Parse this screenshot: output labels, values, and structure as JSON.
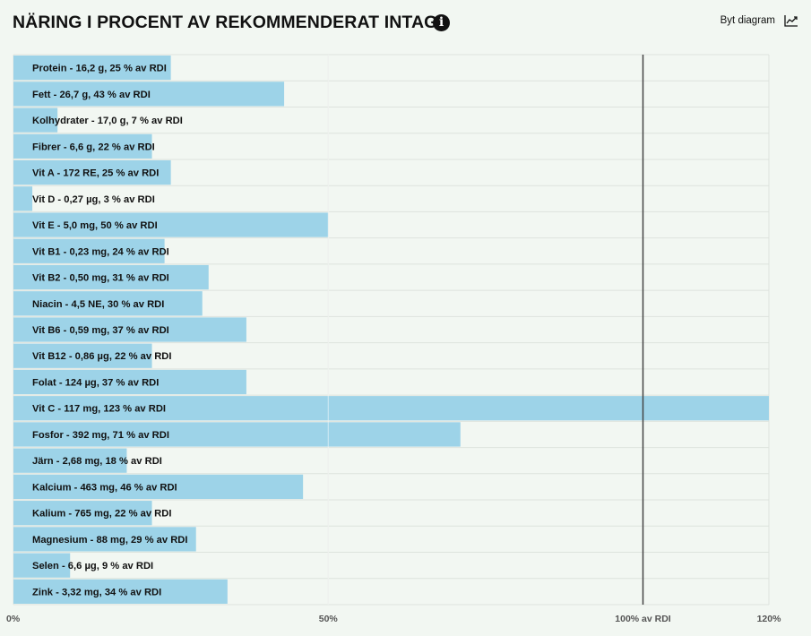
{
  "header": {
    "title": "NÄRING I PROCENT AV REKOMMENDERAT INTAG",
    "info_icon": "info-icon",
    "info_glyph": "i",
    "switch_label": "Byt diagram",
    "switch_icon": "line-chart-icon"
  },
  "colors": {
    "bar": "#9dd3e8",
    "background": "#f2f7f2",
    "grid": "#dde3dd",
    "reference_line": "#444444"
  },
  "chart_data": {
    "type": "bar",
    "orientation": "horizontal",
    "categories": [
      "Protein - 16,2 g, 25 % av RDI",
      "Fett - 26,7 g, 43 % av RDI",
      "Kolhydrater - 17,0 g, 7 % av RDI",
      "Fibrer - 6,6 g, 22 % av RDI",
      "Vit A - 172 RE, 25 % av RDI",
      "Vit D - 0,27 µg, 3 % av RDI",
      "Vit E - 5,0 mg, 50 % av RDI",
      "Vit B1 - 0,23 mg, 24 % av RDI",
      "Vit B2 - 0,50 mg, 31 % av RDI",
      "Niacin - 4,5 NE, 30 % av RDI",
      "Vit B6 - 0,59 mg, 37 % av RDI",
      "Vit B12 - 0,86 µg, 22 % av RDI",
      "Folat - 124 µg, 37 % av RDI",
      "Vit C - 117 mg, 123 % av RDI",
      "Fosfor - 392 mg, 71 % av RDI",
      "Järn - 2,68 mg, 18 % av RDI",
      "Kalcium - 463 mg, 46 % av RDI",
      "Kalium - 765 mg, 22 % av RDI",
      "Magnesium - 88 mg, 29 % av RDI",
      "Selen - 6,6 µg, 9 % av RDI",
      "Zink - 3,32 mg, 34 % av RDI"
    ],
    "values": [
      25,
      43,
      7,
      22,
      25,
      3,
      50,
      24,
      31,
      30,
      37,
      22,
      37,
      123,
      71,
      18,
      46,
      22,
      29,
      9,
      34
    ],
    "xlim": [
      0,
      120
    ],
    "x_ticks": [
      {
        "value": 0,
        "label": "0%"
      },
      {
        "value": 50,
        "label": "50%"
      },
      {
        "value": 100,
        "label": "100% av RDI"
      },
      {
        "value": 120,
        "label": "120%"
      }
    ],
    "reference_line": 100,
    "grid": true
  }
}
